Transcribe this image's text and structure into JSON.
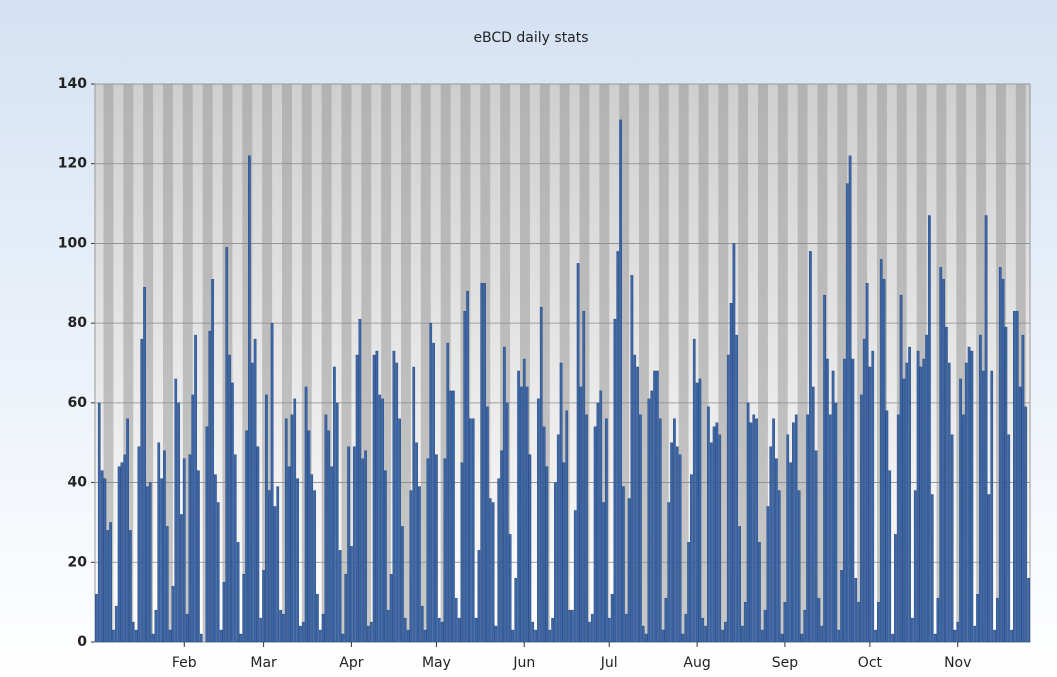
{
  "chart_data": {
    "type": "bar",
    "title": "eBCD daily stats",
    "categories": [
      null,
      null,
      null,
      null,
      null,
      null,
      null,
      null,
      null,
      null,
      null,
      null,
      null,
      null,
      null,
      null,
      null,
      null,
      null,
      null,
      null,
      null,
      null,
      null,
      null,
      null,
      null,
      null,
      null,
      null,
      null,
      "Feb",
      null,
      null,
      null,
      null,
      null,
      null,
      null,
      null,
      null,
      null,
      null,
      null,
      null,
      null,
      null,
      null,
      null,
      null,
      null,
      null,
      null,
      null,
      null,
      null,
      null,
      null,
      null,
      "Mar",
      null,
      null,
      null,
      null,
      null,
      null,
      null,
      null,
      null,
      null,
      null,
      null,
      null,
      null,
      null,
      null,
      null,
      null,
      null,
      null,
      null,
      null,
      null,
      null,
      null,
      null,
      null,
      null,
      null,
      null,
      "Apr",
      null,
      null,
      null,
      null,
      null,
      null,
      null,
      null,
      null,
      null,
      null,
      null,
      null,
      null,
      null,
      null,
      null,
      null,
      null,
      null,
      null,
      null,
      null,
      null,
      null,
      null,
      null,
      null,
      null,
      "May",
      null,
      null,
      null,
      null,
      null,
      null,
      null,
      null,
      null,
      null,
      null,
      null,
      null,
      null,
      null,
      null,
      null,
      null,
      null,
      null,
      null,
      null,
      null,
      null,
      null,
      null,
      null,
      null,
      null,
      null,
      "Jun",
      null,
      null,
      null,
      null,
      null,
      null,
      null,
      null,
      null,
      null,
      null,
      null,
      null,
      null,
      null,
      null,
      null,
      null,
      null,
      null,
      null,
      null,
      null,
      null,
      null,
      null,
      null,
      null,
      null,
      "Jul",
      null,
      null,
      null,
      null,
      null,
      null,
      null,
      null,
      null,
      null,
      null,
      null,
      null,
      null,
      null,
      null,
      null,
      null,
      null,
      null,
      null,
      null,
      null,
      null,
      null,
      null,
      null,
      null,
      null,
      null,
      "Aug",
      null,
      null,
      null,
      null,
      null,
      null,
      null,
      null,
      null,
      null,
      null,
      null,
      null,
      null,
      null,
      null,
      null,
      null,
      null,
      null,
      null,
      null,
      null,
      null,
      null,
      null,
      null,
      null,
      null,
      null,
      "Sep",
      null,
      null,
      null,
      null,
      null,
      null,
      null,
      null,
      null,
      null,
      null,
      null,
      null,
      null,
      null,
      null,
      null,
      null,
      null,
      null,
      null,
      null,
      null,
      null,
      null,
      null,
      null,
      null,
      null,
      "Oct",
      null,
      null,
      null,
      null,
      null,
      null,
      null,
      null,
      null,
      null,
      null,
      null,
      null,
      null,
      null,
      null,
      null,
      null,
      null,
      null,
      null,
      null,
      null,
      null,
      null,
      null,
      null,
      null,
      null,
      null,
      "Nov",
      null,
      null,
      null,
      null,
      null,
      null,
      null,
      null,
      null,
      null,
      null,
      null,
      null,
      null,
      null,
      null,
      null,
      null,
      null,
      null,
      null,
      null,
      null,
      null,
      null
    ],
    "values": [
      12,
      60,
      43,
      41,
      28,
      30,
      3,
      9,
      44,
      45,
      47,
      56,
      28,
      5,
      3,
      49,
      76,
      89,
      39,
      40,
      2,
      8,
      50,
      41,
      48,
      29,
      3,
      14,
      66,
      60,
      32,
      46,
      7,
      47,
      62,
      77,
      43,
      2,
      0,
      54,
      78,
      91,
      42,
      35,
      3,
      15,
      99,
      72,
      65,
      47,
      25,
      2,
      17,
      53,
      122,
      70,
      76,
      49,
      6,
      18,
      62,
      38,
      80,
      34,
      39,
      8,
      7,
      56,
      44,
      57,
      61,
      41,
      4,
      5,
      64,
      53,
      42,
      38,
      12,
      3,
      7,
      57,
      53,
      44,
      69,
      60,
      23,
      2,
      17,
      49,
      24,
      49,
      72,
      81,
      46,
      48,
      4,
      5,
      72,
      73,
      62,
      61,
      43,
      8,
      17,
      73,
      70,
      56,
      29,
      6,
      3,
      38,
      69,
      50,
      39,
      9,
      3,
      46,
      80,
      75,
      47,
      6,
      5,
      46,
      75,
      63,
      63,
      11,
      6,
      45,
      83,
      88,
      56,
      56,
      6,
      23,
      90,
      90,
      59,
      36,
      35,
      4,
      41,
      48,
      74,
      60,
      27,
      3,
      16,
      68,
      64,
      71,
      64,
      47,
      5,
      3,
      61,
      84,
      54,
      44,
      3,
      6,
      40,
      52,
      70,
      45,
      58,
      8,
      8,
      33,
      95,
      64,
      83,
      57,
      5,
      7,
      54,
      60,
      63,
      35,
      56,
      6,
      12,
      81,
      98,
      131,
      39,
      7,
      36,
      92,
      72,
      69,
      57,
      4,
      2,
      61,
      63,
      68,
      68,
      56,
      3,
      11,
      35,
      50,
      56,
      49,
      47,
      2,
      7,
      25,
      42,
      76,
      65,
      66,
      6,
      4,
      59,
      50,
      54,
      55,
      52,
      3,
      5,
      72,
      85,
      100,
      77,
      29,
      4,
      10,
      60,
      55,
      57,
      56,
      25,
      3,
      8,
      34,
      49,
      56,
      46,
      38,
      2,
      10,
      52,
      45,
      55,
      57,
      38,
      2,
      8,
      57,
      98,
      64,
      48,
      11,
      4,
      87,
      71,
      57,
      68,
      60,
      3,
      18,
      71,
      115,
      122,
      71,
      16,
      10,
      62,
      76,
      90,
      69,
      73,
      3,
      10,
      96,
      91,
      58,
      43,
      2,
      27,
      57,
      87,
      66,
      70,
      74,
      6,
      38,
      73,
      69,
      71,
      77,
      107,
      37,
      2,
      11,
      94,
      91,
      79,
      70,
      52,
      3,
      5,
      66,
      57,
      70,
      74,
      73,
      4,
      12,
      77,
      68,
      107,
      37,
      68,
      3,
      11,
      94,
      91,
      79,
      52,
      3,
      83,
      83,
      64,
      77,
      59,
      16
    ],
    "color": "#3c67a8",
    "ylim": [
      0,
      140
    ],
    "yticks": [
      0,
      20,
      40,
      60,
      80,
      100,
      120,
      140
    ],
    "grid": true
  }
}
